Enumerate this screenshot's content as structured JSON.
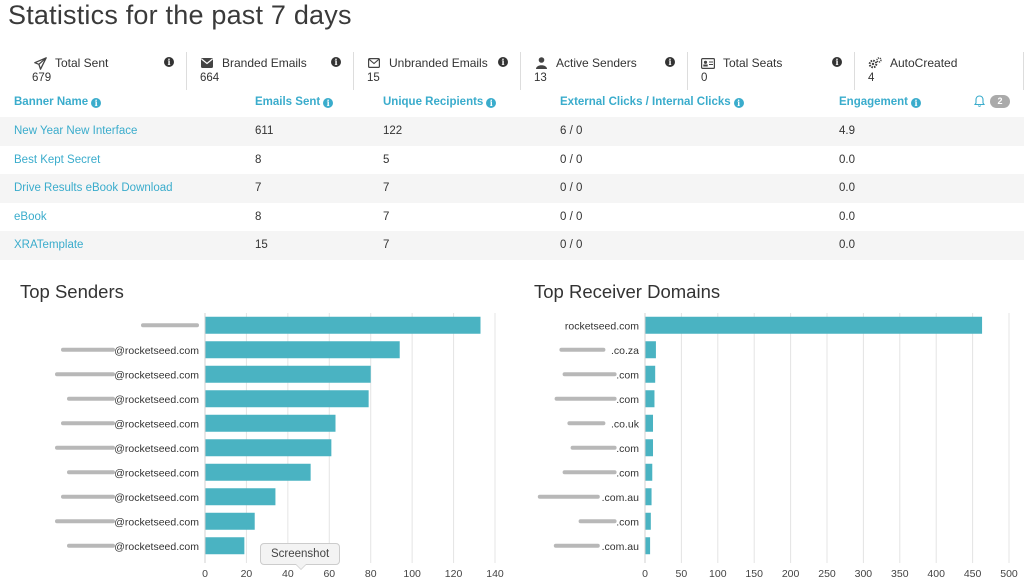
{
  "page": {
    "title": "Statistics for the past 7 days"
  },
  "stats": [
    {
      "label": "Total Sent",
      "value": "679",
      "icon": "paper-plane-icon"
    },
    {
      "label": "Branded Emails",
      "value": "664",
      "icon": "envelope-icon"
    },
    {
      "label": "Unbranded Emails",
      "value": "15",
      "icon": "envelope-outline-icon"
    },
    {
      "label": "Active Senders",
      "value": "13",
      "icon": "user-icon"
    },
    {
      "label": "Total Seats",
      "value": "0",
      "icon": "id-card-icon"
    },
    {
      "label": "AutoCreated",
      "value": "4",
      "icon": "gears-icon"
    }
  ],
  "table": {
    "headers": [
      "Banner Name",
      "Emails Sent",
      "Unique Recipients",
      "External Clicks / Internal Clicks",
      "Engagement"
    ],
    "notifications": "2",
    "rows": [
      [
        "New Year New Interface",
        "611",
        "122",
        "6 / 0",
        "4.9"
      ],
      [
        "Best Kept Secret",
        "8",
        "5",
        "0 / 0",
        "0.0"
      ],
      [
        "Drive Results eBook Download",
        "7",
        "7",
        "0 / 0",
        "0.0"
      ],
      [
        "eBook",
        "8",
        "7",
        "0 / 0",
        "0.0"
      ],
      [
        "XRATemplate",
        "15",
        "7",
        "0 / 0",
        "0.0"
      ]
    ]
  },
  "tooltip": {
    "text": "Screenshot"
  },
  "colors": {
    "accent": "#3aaccc",
    "bar": "#4ab3c2"
  },
  "chart_data": [
    {
      "type": "bar",
      "orientation": "horizontal",
      "title": "Top Senders",
      "categories": [
        "",
        "@rocketseed.com",
        "@rocketseed.com",
        "@rocketseed.com",
        "@rocketseed.com",
        "@rocketseed.com",
        "@rocketseed.com",
        "@rocketseed.com",
        "@rocketseed.com",
        "@rocketseed.com"
      ],
      "values": [
        133,
        94,
        80,
        79,
        63,
        61,
        51,
        34,
        24,
        19
      ],
      "xlim": [
        0,
        140
      ],
      "ticks": [
        "0",
        "20",
        "40",
        "60",
        "80",
        "100",
        "120",
        "140"
      ],
      "grid": true
    },
    {
      "type": "bar",
      "orientation": "horizontal",
      "title": "Top Receiver Domains",
      "categories": [
        "rocketseed.com",
        ".co.za",
        ".com",
        ".com",
        ".co.uk",
        ".com",
        ".com",
        ".com.au",
        ".com",
        ".com.au"
      ],
      "values": [
        463,
        15,
        14,
        13,
        11,
        11,
        10,
        9,
        8,
        7
      ],
      "xlim": [
        0,
        500
      ],
      "ticks": [
        "0",
        "50",
        "100",
        "150",
        "200",
        "250",
        "300",
        "350",
        "400",
        "450",
        "500"
      ],
      "grid": true
    }
  ]
}
